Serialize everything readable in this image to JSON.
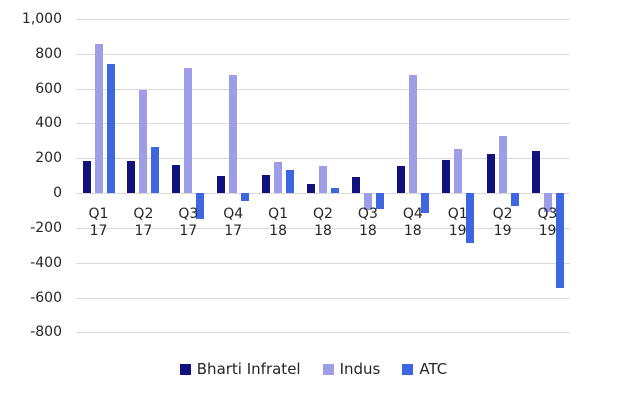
{
  "chart_data": {
    "type": "bar",
    "title": "",
    "xlabel": "",
    "ylabel": "",
    "categories": [
      "Q1 17",
      "Q2 17",
      "Q3 17",
      "Q4 17",
      "Q1 18",
      "Q2 18",
      "Q3 18",
      "Q4 18",
      "Q1 19",
      "Q2 19",
      "Q3 19"
    ],
    "series": [
      {
        "name": "Bharti Infratel",
        "color": "#12127d",
        "values": [
          185,
          185,
          160,
          100,
          105,
          50,
          95,
          155,
          190,
          225,
          240
        ]
      },
      {
        "name": "Indus",
        "color": "#9d9de8",
        "values": [
          855,
          590,
          715,
          680,
          180,
          155,
          -95,
          675,
          255,
          325,
          -110
        ]
      },
      {
        "name": "ATC",
        "color": "#3e66e0",
        "values": [
          740,
          265,
          -150,
          -45,
          135,
          30,
          -90,
          -115,
          -285,
          -75,
          -545
        ]
      }
    ],
    "ylim": [
      -800,
      1000
    ],
    "ytick_step": 200,
    "yticks": [
      {
        "value": 1000,
        "label": "1,000"
      },
      {
        "value": 800,
        "label": "800"
      },
      {
        "value": 600,
        "label": "600"
      },
      {
        "value": 400,
        "label": "400"
      },
      {
        "value": 200,
        "label": "200"
      },
      {
        "value": 0,
        "label": "0"
      },
      {
        "value": -200,
        "label": "-200"
      },
      {
        "value": -400,
        "label": "-400"
      },
      {
        "value": -600,
        "label": "-600"
      },
      {
        "value": -800,
        "label": "-800"
      }
    ],
    "grid": true,
    "legend_position": "bottom"
  },
  "colors": {
    "grid": "#d9d9d9",
    "text": "#262626",
    "background": "#ffffff"
  }
}
